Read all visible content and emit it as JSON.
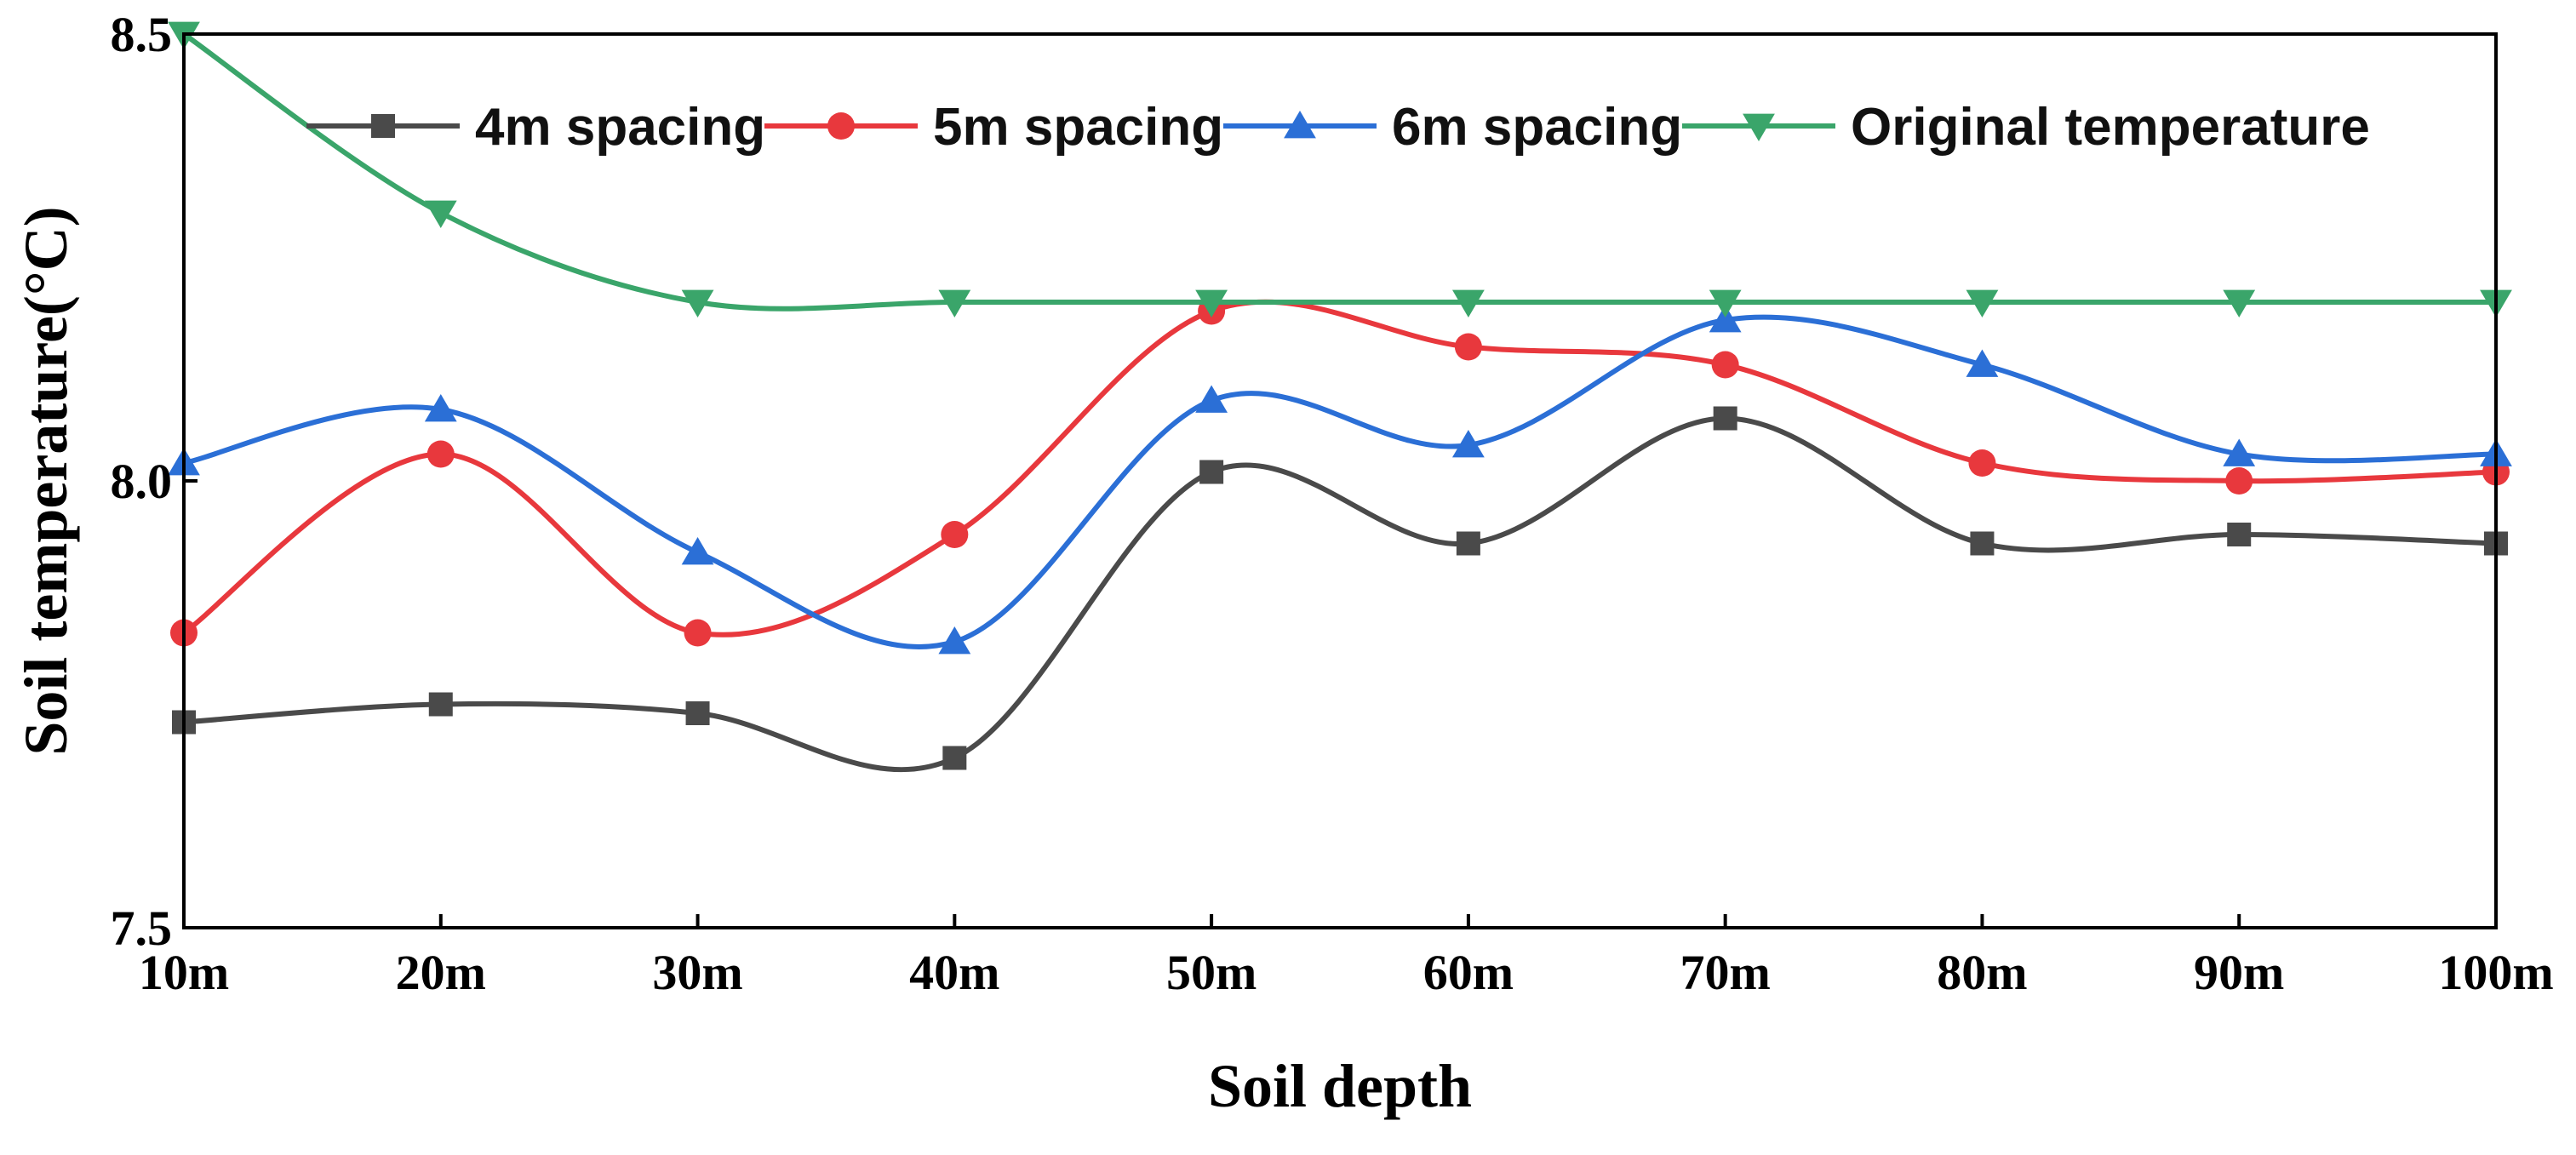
{
  "chart_data": {
    "type": "line",
    "title": "",
    "xlabel": "Soil depth",
    "ylabel": "Soil temperature(°C)",
    "categories": [
      "10m",
      "20m",
      "30m",
      "40m",
      "50m",
      "60m",
      "70m",
      "80m",
      "90m",
      "100m"
    ],
    "ylim": [
      7.5,
      8.5
    ],
    "yticks": [
      "7.5",
      "8.0",
      "8.5"
    ],
    "grid": false,
    "legend_position": "top",
    "series": [
      {
        "name": "4m spacing",
        "marker": "square",
        "color": "#4a4a4a",
        "values": [
          7.73,
          7.75,
          7.74,
          7.69,
          8.01,
          7.93,
          8.07,
          7.93,
          7.94,
          7.93
        ]
      },
      {
        "name": "5m spacing",
        "marker": "circle",
        "color": "#e8383d",
        "values": [
          7.83,
          8.03,
          7.83,
          7.94,
          8.19,
          8.15,
          8.13,
          8.02,
          8.0,
          8.01
        ]
      },
      {
        "name": "6m spacing",
        "marker": "triangle-up",
        "color": "#2b6fd6",
        "values": [
          8.02,
          8.08,
          7.92,
          7.82,
          8.09,
          8.04,
          8.18,
          8.13,
          8.03,
          8.03
        ]
      },
      {
        "name": "Original temperature",
        "marker": "triangle-down",
        "color": "#3aa56a",
        "values": [
          8.5,
          8.3,
          8.2,
          8.2,
          8.2,
          8.2,
          8.2,
          8.2,
          8.2,
          8.2
        ]
      }
    ]
  }
}
